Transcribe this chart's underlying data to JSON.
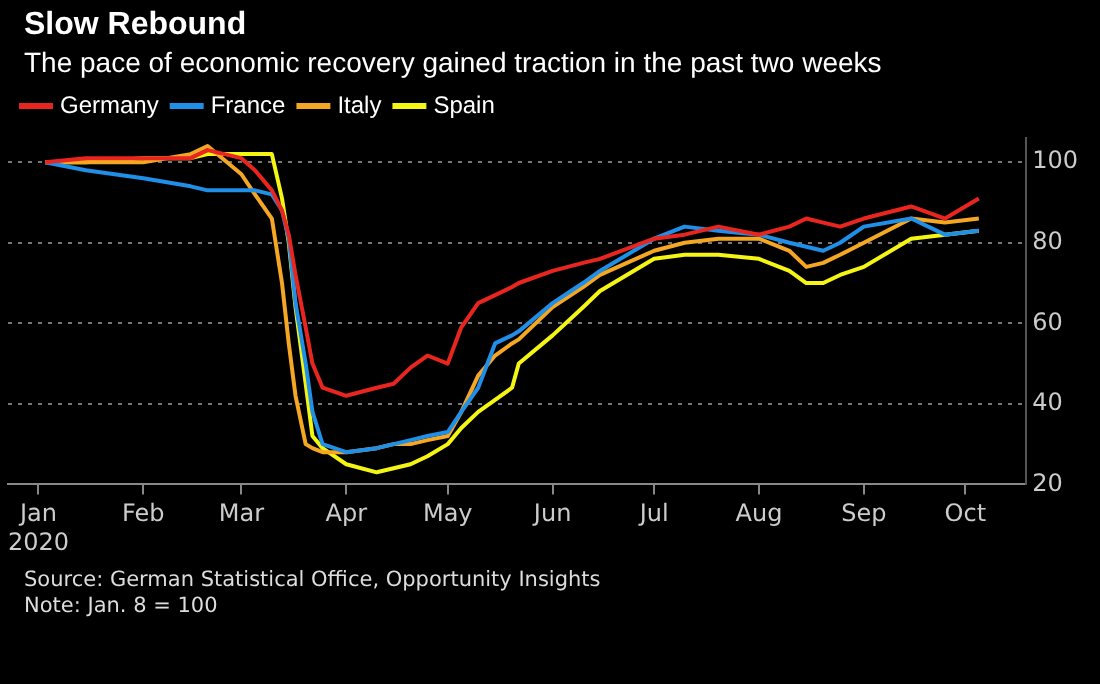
{
  "chart_data": {
    "type": "line",
    "title": "Slow Rebound",
    "subtitle": "The pace of economic recovery gained traction in the past two weeks",
    "x": [
      "2020-01-03",
      "2020-01-15",
      "2020-02-01",
      "2020-02-15",
      "2020-02-20",
      "2020-03-01",
      "2020-03-05",
      "2020-03-10",
      "2020-03-13",
      "2020-03-15",
      "2020-03-17",
      "2020-03-20",
      "2020-03-22",
      "2020-03-25",
      "2020-04-01",
      "2020-04-10",
      "2020-04-15",
      "2020-04-20",
      "2020-04-25",
      "2020-05-01",
      "2020-05-05",
      "2020-05-10",
      "2020-05-15",
      "2020-05-20",
      "2020-05-22",
      "2020-06-01",
      "2020-06-10",
      "2020-06-15",
      "2020-07-01",
      "2020-07-10",
      "2020-07-20",
      "2020-08-01",
      "2020-08-10",
      "2020-08-15",
      "2020-08-20",
      "2020-08-25",
      "2020-09-01",
      "2020-09-15",
      "2020-09-25",
      "2020-10-05"
    ],
    "series": [
      {
        "name": "Germany",
        "color": "#e8251f",
        "values": [
          100,
          101,
          101,
          101,
          103,
          101,
          98,
          93,
          88,
          82,
          72,
          59,
          50,
          44,
          42,
          44,
          45,
          49,
          52,
          50,
          59,
          65,
          67,
          69,
          70,
          73,
          75,
          76,
          81,
          82,
          84,
          82,
          84,
          86,
          85,
          84,
          86,
          89,
          86,
          91
        ]
      },
      {
        "name": "France",
        "color": "#1f8fe8",
        "values": [
          100,
          98,
          96,
          94,
          93,
          93,
          93,
          92,
          88,
          81,
          65,
          50,
          38,
          30,
          28,
          29,
          30,
          31,
          32,
          33,
          38,
          44,
          55,
          57,
          58,
          65,
          70,
          73,
          81,
          84,
          83,
          82,
          80,
          79,
          78,
          80,
          84,
          86,
          82,
          83
        ]
      },
      {
        "name": "Italy",
        "color": "#f5a623",
        "values": [
          100,
          100,
          100,
          102,
          104,
          97,
          92,
          86,
          70,
          55,
          42,
          30,
          29,
          28,
          28,
          29,
          30,
          30,
          31,
          32,
          38,
          47,
          52,
          55,
          56,
          64,
          69,
          72,
          78,
          80,
          81,
          81,
          78,
          74,
          75,
          77,
          80,
          86,
          85,
          86
        ]
      },
      {
        "name": "Spain",
        "color": "#f5f514",
        "values": [
          100,
          100,
          101,
          101,
          102,
          102,
          102,
          102,
          91,
          80,
          64,
          45,
          32,
          29,
          25,
          23,
          24,
          25,
          27,
          30,
          34,
          38,
          41,
          44,
          50,
          57,
          64,
          68,
          76,
          77,
          77,
          76,
          73,
          70,
          70,
          72,
          74,
          81,
          82,
          83
        ]
      }
    ],
    "xlim": [
      "2019-12-23",
      "2020-10-19"
    ],
    "xticks": [
      {
        "value": "2020-01-01",
        "label": "Jan\n2020"
      },
      {
        "value": "2020-02-01",
        "label": "Feb"
      },
      {
        "value": "2020-03-01",
        "label": "Mar"
      },
      {
        "value": "2020-04-01",
        "label": "Apr"
      },
      {
        "value": "2020-05-01",
        "label": "May"
      },
      {
        "value": "2020-06-01",
        "label": "Jun"
      },
      {
        "value": "2020-07-01",
        "label": "Jul"
      },
      {
        "value": "2020-08-01",
        "label": "Aug"
      },
      {
        "value": "2020-09-01",
        "label": "Sep"
      },
      {
        "value": "2020-10-01",
        "label": "Oct"
      }
    ],
    "ylim": [
      20,
      106
    ],
    "yticks": [
      20,
      40,
      60,
      80,
      100
    ],
    "grid": "y",
    "legend": "top left",
    "marker": "none",
    "line_style": "solid",
    "annotations": [
      "Source: German Statistical Office, Opportunity Insights",
      "Note: Jan. 8 = 100"
    ]
  }
}
